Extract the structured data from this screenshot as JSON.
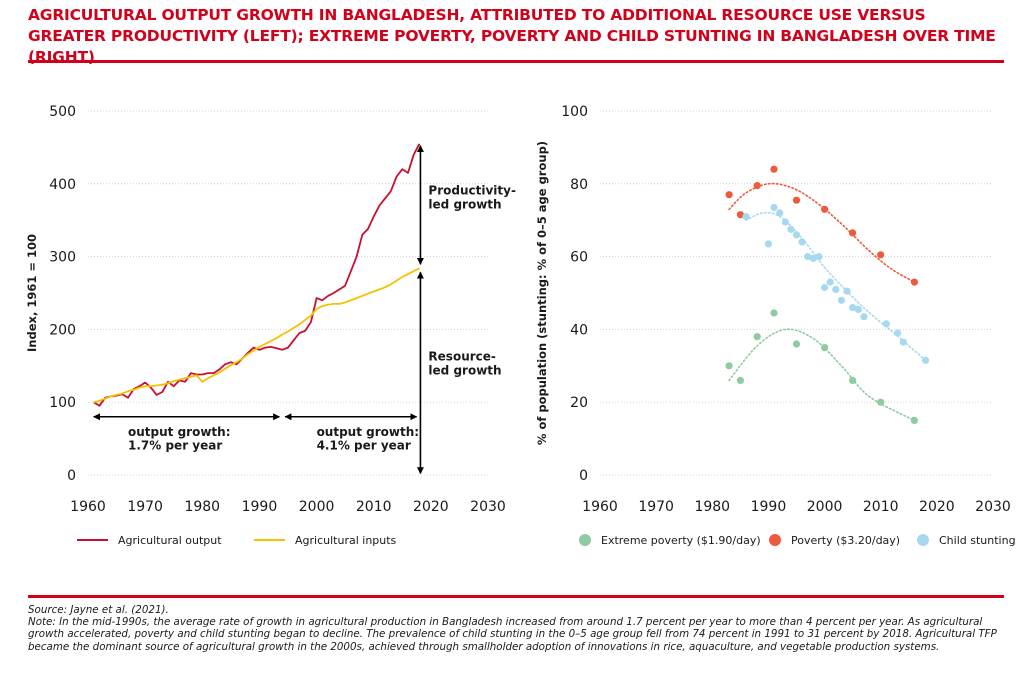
{
  "title": "AGRICULTURAL OUTPUT GROWTH IN BANGLADESH, ATTRIBUTED TO ADDITIONAL RESOURCE USE VERSUS GREATER PRODUCTIVITY (LEFT); EXTREME POVERTY, POVERTY AND CHILD STUNTING IN BANGLADESH OVER TIME (RIGHT)",
  "source": "Source: Jayne et al. (2021).",
  "note": "Note: In the mid-1990s, the average rate of growth in agricultural production in Bangladesh increased from around 1.7 percent per year to more than 4 percent per year. As agricultural growth accelerated, poverty and child stunting began to decline. The prevalence of child stunting in the 0–5 age group fell from 74 percent in 1991 to 31 percent by 2018. Agricultural TFP became the dominant source of agricultural growth in the 2000s, achieved through smallholder adoption of innovations in rice, aquaculture, and vegetable production systems.",
  "chart_data": [
    {
      "type": "line",
      "ylabel": "Index, 1961 = 100",
      "xlim": [
        1960,
        2030
      ],
      "ylim": [
        0,
        500
      ],
      "xticks": [
        1960,
        1970,
        1980,
        1990,
        2000,
        2010,
        2020,
        2030
      ],
      "yticks": [
        0,
        100,
        200,
        300,
        400,
        500
      ],
      "legend_position": "bottom",
      "colors": {
        "Agricultural output": "#c8102e",
        "Agricultural inputs": "#f2c200"
      },
      "series": [
        {
          "name": "Agricultural output",
          "x": [
            1961,
            1962,
            1963,
            1964,
            1965,
            1966,
            1967,
            1968,
            1969,
            1970,
            1971,
            1972,
            1973,
            1974,
            1975,
            1976,
            1977,
            1978,
            1979,
            1980,
            1981,
            1982,
            1983,
            1984,
            1985,
            1986,
            1987,
            1988,
            1989,
            1990,
            1991,
            1992,
            1993,
            1994,
            1995,
            1996,
            1997,
            1998,
            1999,
            2000,
            2001,
            2002,
            2003,
            2004,
            2005,
            2006,
            2007,
            2008,
            2009,
            2010,
            2011,
            2012,
            2013,
            2014,
            2015,
            2016,
            2017,
            2018
          ],
          "values": [
            100,
            95,
            106,
            108,
            109,
            111,
            106,
            118,
            122,
            127,
            120,
            110,
            114,
            128,
            122,
            130,
            128,
            140,
            138,
            138,
            140,
            140,
            145,
            152,
            155,
            152,
            160,
            168,
            175,
            172,
            175,
            176,
            174,
            172,
            175,
            185,
            195,
            198,
            210,
            243,
            240,
            246,
            250,
            255,
            260,
            280,
            300,
            330,
            338,
            355,
            370,
            380,
            390,
            410,
            420,
            415,
            440,
            455
          ]
        },
        {
          "name": "Agricultural inputs",
          "x": [
            1961,
            1962,
            1963,
            1964,
            1965,
            1966,
            1967,
            1968,
            1969,
            1970,
            1971,
            1972,
            1973,
            1974,
            1975,
            1976,
            1977,
            1978,
            1979,
            1980,
            1981,
            1982,
            1983,
            1984,
            1985,
            1986,
            1987,
            1988,
            1989,
            1990,
            1991,
            1992,
            1993,
            1994,
            1995,
            1996,
            1997,
            1998,
            1999,
            2000,
            2001,
            2002,
            2003,
            2004,
            2005,
            2006,
            2007,
            2008,
            2009,
            2010,
            2011,
            2012,
            2013,
            2014,
            2015,
            2016,
            2017,
            2018
          ],
          "values": [
            100,
            102,
            105,
            108,
            110,
            112,
            115,
            117,
            120,
            122,
            122,
            123,
            124,
            126,
            129,
            131,
            133,
            135,
            137,
            128,
            133,
            137,
            141,
            146,
            151,
            155,
            160,
            166,
            171,
            176,
            180,
            184,
            188,
            193,
            197,
            202,
            207,
            213,
            219,
            228,
            232,
            234,
            235,
            235,
            237,
            240,
            243,
            246,
            249,
            252,
            255,
            258,
            262,
            267,
            272,
            276,
            280,
            284
          ]
        }
      ],
      "annotations": {
        "productivity": "Productivity-\nled growth",
        "resource": "Resource-\nled growth",
        "period1": "output growth:\n1.7% per year",
        "period2": "output growth:\n4.1% per year"
      }
    },
    {
      "type": "scatter",
      "ylabel": "% of population (stunting: % of 0–5 age group)",
      "xlim": [
        1960,
        2030
      ],
      "ylim": [
        0,
        100
      ],
      "xticks": [
        1960,
        1970,
        1980,
        1990,
        2000,
        2010,
        2020,
        2030
      ],
      "yticks": [
        0,
        20,
        40,
        60,
        80,
        100
      ],
      "legend_position": "bottom",
      "colors": {
        "Extreme poverty ($1.90/day)": "#8fcaa0",
        "Poverty ($3.20/day)": "#ee5a3c",
        "Child stunting": "#a6d8ef"
      },
      "trend_curves": true,
      "series": [
        {
          "name": "Extreme poverty ($1.90/day)",
          "x": [
            1983,
            1985,
            1988,
            1991,
            1995,
            2000,
            2005,
            2010,
            2016
          ],
          "values": [
            30,
            26,
            38,
            44.5,
            36,
            35,
            26,
            20,
            15
          ],
          "trend": [
            [
              1983,
              26
            ],
            [
              1988,
              35.5
            ],
            [
              1993,
              40
            ],
            [
              1998,
              37.5
            ],
            [
              2003,
              30
            ],
            [
              2008,
              21.5
            ],
            [
              2016,
              15
            ]
          ]
        },
        {
          "name": "Poverty ($3.20/day)",
          "x": [
            1983,
            1985,
            1988,
            1991,
            1995,
            2000,
            2005,
            2010,
            2016
          ],
          "values": [
            77,
            71.5,
            79.5,
            84,
            75.5,
            73,
            66.5,
            60.5,
            53
          ],
          "trend": [
            [
              1983,
              73
            ],
            [
              1986,
              77.5
            ],
            [
              1990,
              80
            ],
            [
              1994,
              79
            ],
            [
              1998,
              75.5
            ],
            [
              2003,
              69
            ],
            [
              2008,
              61.5
            ],
            [
              2012,
              56.5
            ],
            [
              2016,
              53
            ]
          ]
        },
        {
          "name": "Child stunting",
          "x": [
            1986,
            1990,
            1991,
            1992,
            1993,
            1994,
            1995,
            1996,
            1997,
            1998,
            1999,
            2000,
            2001,
            2002,
            2003,
            2004,
            2005,
            2006,
            2007,
            2011,
            2013,
            2014,
            2018
          ],
          "values": [
            71,
            63.5,
            73.5,
            72,
            69.5,
            67.5,
            66,
            64,
            60,
            59.5,
            60,
            51.5,
            53,
            51,
            48,
            50.5,
            46,
            45.5,
            43.5,
            41.5,
            39,
            36.5,
            31.5
          ],
          "trend": [
            [
              1986,
              70
            ],
            [
              1989,
              72
            ],
            [
              1992,
              71
            ],
            [
              1996,
              65
            ],
            [
              2000,
              57
            ],
            [
              2004,
              50.5
            ],
            [
              2008,
              44.5
            ],
            [
              2012,
              39.5
            ],
            [
              2015,
              35.5
            ],
            [
              2018,
              31.5
            ]
          ]
        }
      ]
    }
  ]
}
